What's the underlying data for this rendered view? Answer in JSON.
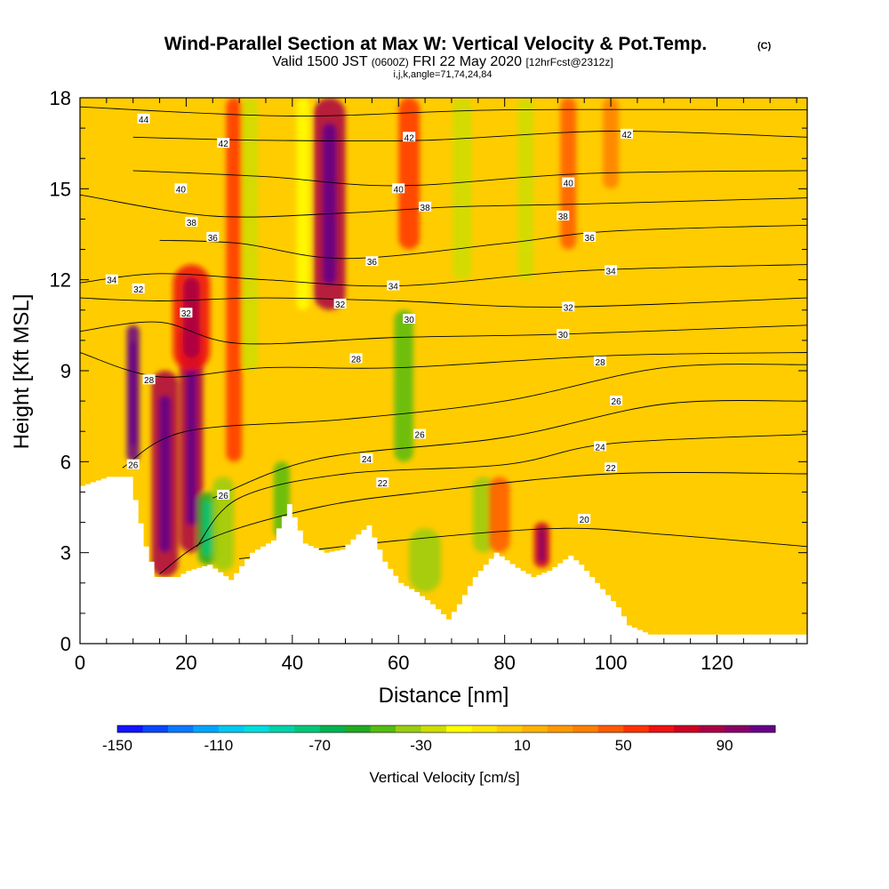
{
  "chart_data": {
    "type": "heatmap",
    "title": {
      "main": "Wind-Parallel Section at Max W: Vertical Velocity & Pot.Temp.",
      "main_mark": "(C)",
      "valid_prefix": "Valid 1500 JST",
      "valid_z": "(0600Z)",
      "valid_date": "FRI 22 May 2020",
      "valid_fcst": "[12hrFcst@2312z]",
      "params": "i,j,k,angle=71,74,24,84"
    },
    "xlabel": "Distance [nm]",
    "ylabel": "Height [Kft MSL]",
    "xlim": [
      0,
      137
    ],
    "ylim": [
      0,
      18
    ],
    "x_ticks": [
      0,
      20,
      40,
      60,
      80,
      100,
      120
    ],
    "y_ticks": [
      0,
      3,
      6,
      9,
      12,
      15,
      18
    ],
    "colorbar": {
      "label": "Vertical Velocity [cm/s]",
      "min": -150,
      "max": 110,
      "step": 10,
      "tick_values": [
        -150,
        -110,
        -70,
        -30,
        10,
        50,
        90
      ],
      "colors": [
        "#1414ff",
        "#0a46ff",
        "#0a78ff",
        "#00a5ff",
        "#00c8f0",
        "#00dcdc",
        "#00d2aa",
        "#00c878",
        "#00b450",
        "#22aa22",
        "#55bb11",
        "#99cc11",
        "#ccdd00",
        "#ffff00",
        "#ffe600",
        "#ffcc00",
        "#ffb300",
        "#ff9900",
        "#ff7f00",
        "#ff5a00",
        "#ff3300",
        "#ee1111",
        "#cc0022",
        "#aa0044",
        "#880066",
        "#660088"
      ]
    },
    "terrain_kft": [
      [
        0,
        5.2
      ],
      [
        5,
        5.5
      ],
      [
        9,
        5.5
      ],
      [
        12,
        3.2
      ],
      [
        14,
        2.2
      ],
      [
        18,
        2.2
      ],
      [
        20,
        2.4
      ],
      [
        24,
        2.6
      ],
      [
        28,
        2.1
      ],
      [
        32,
        3.0
      ],
      [
        36,
        3.4
      ],
      [
        39,
        4.6
      ],
      [
        42,
        3.3
      ],
      [
        46,
        3.0
      ],
      [
        49,
        3.1
      ],
      [
        52,
        3.6
      ],
      [
        54,
        3.9
      ],
      [
        57,
        2.7
      ],
      [
        60,
        2.0
      ],
      [
        63,
        1.7
      ],
      [
        66,
        1.3
      ],
      [
        69,
        0.8
      ],
      [
        71,
        1.3
      ],
      [
        74,
        2.2
      ],
      [
        78,
        3.0
      ],
      [
        82,
        2.5
      ],
      [
        85,
        2.2
      ],
      [
        88,
        2.4
      ],
      [
        92,
        2.9
      ],
      [
        94,
        2.6
      ],
      [
        98,
        1.8
      ],
      [
        101,
        1.2
      ],
      [
        103,
        0.6
      ],
      [
        107,
        0.3
      ],
      [
        120,
        0.3
      ],
      [
        137,
        0.3
      ]
    ],
    "wind_features": [
      {
        "x": 10,
        "bottom": 6.0,
        "top": 10.5,
        "w": 1.2,
        "v": 110
      },
      {
        "x": 16,
        "bottom": 2.2,
        "top": 9.0,
        "w": 2.5,
        "v": 80
      },
      {
        "x": 21,
        "bottom": 3.0,
        "top": 10.5,
        "w": 2.2,
        "v": 85
      },
      {
        "x": 21,
        "bottom": 9.0,
        "top": 12.5,
        "w": 3.5,
        "v": 60
      },
      {
        "x": 24,
        "bottom": 2.6,
        "top": 5.0,
        "w": 1.8,
        "v": -60
      },
      {
        "x": 27,
        "bottom": 2.4,
        "top": 5.5,
        "w": 2.0,
        "v": -40
      },
      {
        "x": 29,
        "bottom": 6.0,
        "top": 18.0,
        "w": 1.5,
        "v": 55
      },
      {
        "x": 32,
        "bottom": 9.0,
        "top": 18.0,
        "w": 1.5,
        "v": -25
      },
      {
        "x": 38,
        "bottom": 3.5,
        "top": 6.0,
        "w": 1.5,
        "v": -50
      },
      {
        "x": 47,
        "bottom": 11.0,
        "top": 18.0,
        "w": 3.0,
        "v": 85
      },
      {
        "x": 42,
        "bottom": 11.0,
        "top": 18.0,
        "w": 1.2,
        "v": -20
      },
      {
        "x": 61,
        "bottom": 6.0,
        "top": 11.0,
        "w": 1.8,
        "v": -50
      },
      {
        "x": 62,
        "bottom": 13.0,
        "top": 18.0,
        "w": 2.0,
        "v": 55
      },
      {
        "x": 65,
        "bottom": 1.7,
        "top": 3.8,
        "w": 3.0,
        "v": -40
      },
      {
        "x": 72,
        "bottom": 12.0,
        "top": 18.0,
        "w": 1.8,
        "v": -30
      },
      {
        "x": 76,
        "bottom": 3.0,
        "top": 5.5,
        "w": 2.0,
        "v": -40
      },
      {
        "x": 79,
        "bottom": 3.0,
        "top": 5.5,
        "w": 2.0,
        "v": 40
      },
      {
        "x": 84,
        "bottom": 12.0,
        "top": 18.0,
        "w": 1.5,
        "v": -25
      },
      {
        "x": 87,
        "bottom": 2.5,
        "top": 4.0,
        "w": 1.5,
        "v": 75
      },
      {
        "x": 92,
        "bottom": 13.0,
        "top": 18.0,
        "w": 1.5,
        "v": 40
      },
      {
        "x": 100,
        "bottom": 15.0,
        "top": 18.0,
        "w": 1.5,
        "v": 30
      }
    ],
    "theta_contours": [
      {
        "k": 20,
        "pts": [
          [
            30,
            2.8
          ],
          [
            60,
            3.4
          ],
          [
            90,
            3.8
          ],
          [
            110,
            3.6
          ],
          [
            137,
            3.2
          ]
        ]
      },
      {
        "k": 22,
        "pts": [
          [
            15,
            2.3
          ],
          [
            25,
            3.5
          ],
          [
            45,
            4.5
          ],
          [
            65,
            5.0
          ],
          [
            100,
            5.6
          ],
          [
            137,
            5.6
          ]
        ]
      },
      {
        "k": 24,
        "pts": [
          [
            22,
            3.2
          ],
          [
            30,
            4.8
          ],
          [
            50,
            5.6
          ],
          [
            80,
            5.9
          ],
          [
            100,
            6.6
          ],
          [
            137,
            6.9
          ]
        ]
      },
      {
        "k": 26,
        "pts": [
          [
            25,
            4.8
          ],
          [
            45,
            6.1
          ],
          [
            80,
            6.8
          ],
          [
            110,
            7.9
          ],
          [
            137,
            8.0
          ]
        ]
      },
      {
        "k": 28,
        "pts": [
          [
            8,
            5.8
          ],
          [
            20,
            7.0
          ],
          [
            50,
            7.4
          ],
          [
            80,
            8.0
          ],
          [
            110,
            9.1
          ],
          [
            137,
            9.2
          ]
        ]
      },
      {
        "k": 28,
        "pts": [
          [
            0,
            9.6
          ],
          [
            15,
            8.8
          ],
          [
            35,
            9.1
          ],
          [
            60,
            9.1
          ],
          [
            100,
            9.5
          ],
          [
            137,
            9.6
          ]
        ]
      },
      {
        "k": 30,
        "pts": [
          [
            0,
            10.3
          ],
          [
            15,
            10.6
          ],
          [
            30,
            9.9
          ],
          [
            60,
            10.1
          ],
          [
            90,
            10.2
          ],
          [
            137,
            10.5
          ]
        ]
      },
      {
        "k": 32,
        "pts": [
          [
            0,
            11.4
          ],
          [
            15,
            11.3
          ],
          [
            35,
            11.4
          ],
          [
            60,
            11.3
          ],
          [
            90,
            11.1
          ],
          [
            137,
            11.4
          ]
        ]
      },
      {
        "k": 34,
        "pts": [
          [
            0,
            11.9
          ],
          [
            15,
            12.2
          ],
          [
            35,
            12.0
          ],
          [
            60,
            11.8
          ],
          [
            95,
            12.3
          ],
          [
            137,
            12.5
          ]
        ]
      },
      {
        "k": 36,
        "pts": [
          [
            15,
            13.3
          ],
          [
            30,
            13.2
          ],
          [
            50,
            12.7
          ],
          [
            80,
            13.2
          ],
          [
            100,
            13.6
          ],
          [
            137,
            13.8
          ]
        ]
      },
      {
        "k": 38,
        "pts": [
          [
            0,
            14.8
          ],
          [
            25,
            14.1
          ],
          [
            50,
            14.2
          ],
          [
            70,
            14.4
          ],
          [
            95,
            14.5
          ],
          [
            137,
            14.7
          ]
        ]
      },
      {
        "k": 40,
        "pts": [
          [
            10,
            15.6
          ],
          [
            35,
            15.4
          ],
          [
            60,
            15.1
          ],
          [
            95,
            15.5
          ],
          [
            137,
            15.6
          ]
        ]
      },
      {
        "k": 42,
        "pts": [
          [
            10,
            16.7
          ],
          [
            35,
            16.6
          ],
          [
            65,
            16.6
          ],
          [
            100,
            16.9
          ],
          [
            137,
            16.7
          ]
        ]
      },
      {
        "k": 44,
        "pts": [
          [
            0,
            17.7
          ],
          [
            40,
            17.4
          ],
          [
            80,
            17.6
          ],
          [
            137,
            17.6
          ]
        ]
      }
    ],
    "contour_labels": [
      {
        "text": "44",
        "x": 12,
        "y": 17.3
      },
      {
        "text": "42",
        "x": 27,
        "y": 16.5
      },
      {
        "text": "42",
        "x": 62,
        "y": 16.7
      },
      {
        "text": "42",
        "x": 103,
        "y": 16.8
      },
      {
        "text": "40",
        "x": 19,
        "y": 15.0
      },
      {
        "text": "40",
        "x": 60,
        "y": 15.0
      },
      {
        "text": "40",
        "x": 92,
        "y": 15.2
      },
      {
        "text": "38",
        "x": 21,
        "y": 13.9
      },
      {
        "text": "38",
        "x": 65,
        "y": 14.4
      },
      {
        "text": "38",
        "x": 91,
        "y": 14.1
      },
      {
        "text": "36",
        "x": 25,
        "y": 13.4
      },
      {
        "text": "36",
        "x": 55,
        "y": 12.6
      },
      {
        "text": "36",
        "x": 96,
        "y": 13.4
      },
      {
        "text": "34",
        "x": 6,
        "y": 12.0
      },
      {
        "text": "34",
        "x": 59,
        "y": 11.8
      },
      {
        "text": "34",
        "x": 100,
        "y": 12.3
      },
      {
        "text": "32",
        "x": 11,
        "y": 11.7
      },
      {
        "text": "32",
        "x": 49,
        "y": 11.2
      },
      {
        "text": "32",
        "x": 92,
        "y": 11.1
      },
      {
        "text": "32",
        "x": 20,
        "y": 10.9
      },
      {
        "text": "30",
        "x": 62,
        "y": 10.7
      },
      {
        "text": "30",
        "x": 91,
        "y": 10.2
      },
      {
        "text": "28",
        "x": 52,
        "y": 9.4
      },
      {
        "text": "28",
        "x": 98,
        "y": 9.3
      },
      {
        "text": "28",
        "x": 13,
        "y": 8.7
      },
      {
        "text": "26",
        "x": 101,
        "y": 8.0
      },
      {
        "text": "26",
        "x": 64,
        "y": 6.9
      },
      {
        "text": "24",
        "x": 54,
        "y": 6.1
      },
      {
        "text": "24",
        "x": 98,
        "y": 6.5
      },
      {
        "text": "22",
        "x": 57,
        "y": 5.3
      },
      {
        "text": "22",
        "x": 100,
        "y": 5.8
      },
      {
        "text": "20",
        "x": 95,
        "y": 4.1
      },
      {
        "text": "26",
        "x": 10,
        "y": 5.9
      },
      {
        "text": "26",
        "x": 27,
        "y": 4.9
      }
    ]
  }
}
